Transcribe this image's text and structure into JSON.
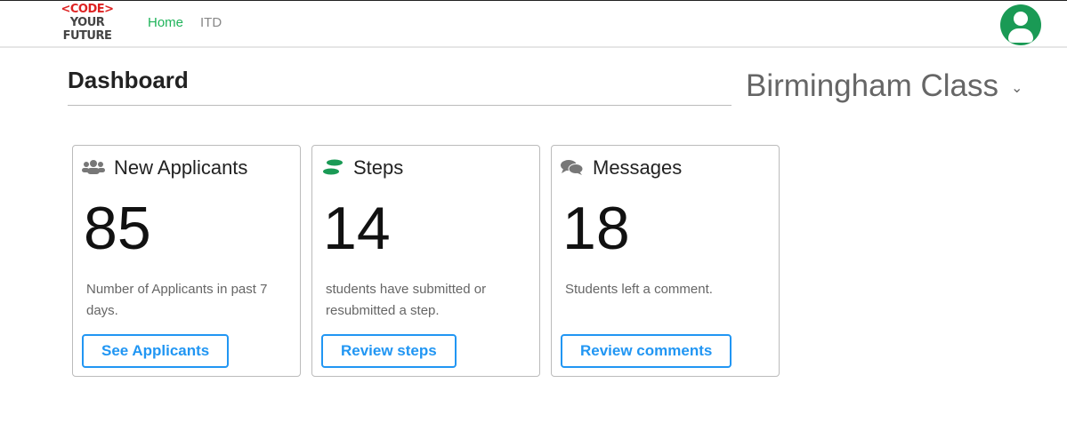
{
  "nav": {
    "logo": {
      "line1": "<CODE>",
      "line2": "YOUR",
      "line3": "FUTURE"
    },
    "links": [
      {
        "label": "Home",
        "color": "#1fb35a"
      },
      {
        "label": "ITD",
        "color": "#888"
      }
    ],
    "avatar_icon": "user-circle-icon"
  },
  "page": {
    "title": "Dashboard",
    "class_selector": "Birmingham Class"
  },
  "cards": [
    {
      "icon": "users-icon",
      "title": "New Applicants",
      "count": "85",
      "description": "Number of Applicants in past 7 days.",
      "button": "See Applicants"
    },
    {
      "icon": "footsteps-icon",
      "title": "Steps",
      "count": "14",
      "description": "students have submitted or resubmitted a step.",
      "button": "Review steps"
    },
    {
      "icon": "comments-icon",
      "title": "Messages",
      "count": "18",
      "description": "Students left a comment.",
      "button": "Review comments"
    }
  ]
}
